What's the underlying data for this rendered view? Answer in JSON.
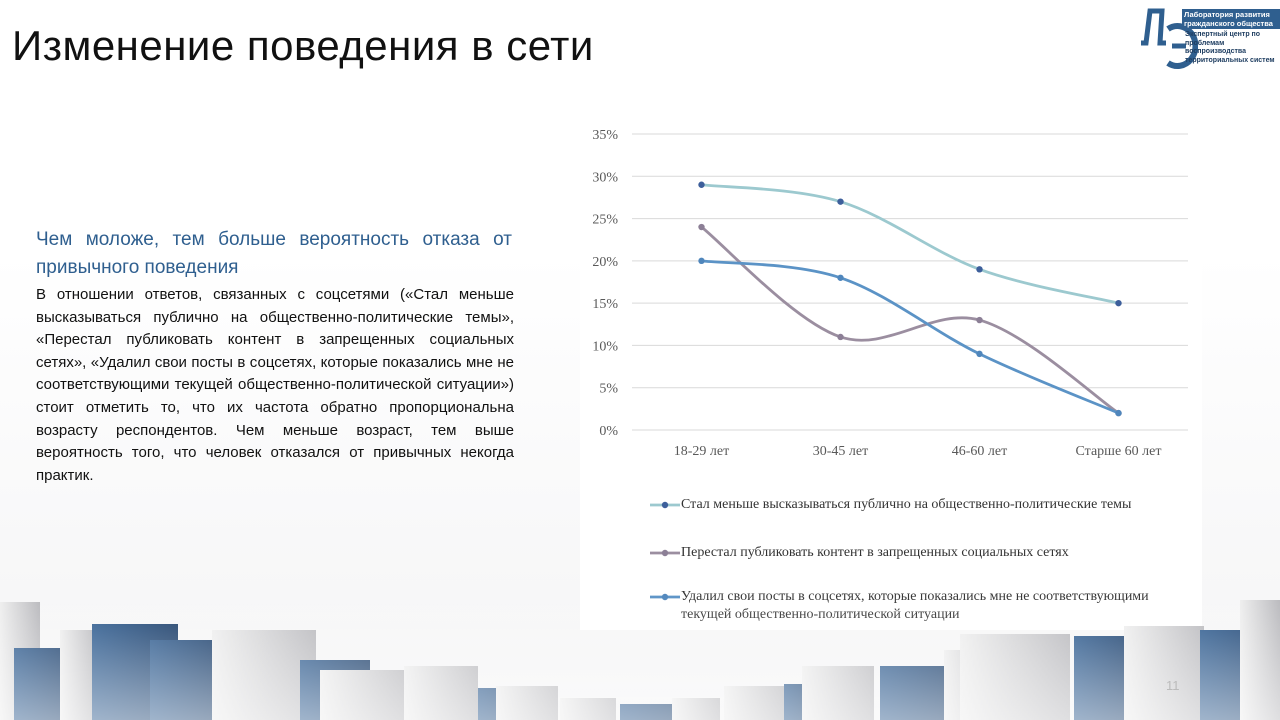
{
  "slide": {
    "title": "Изменение поведения в сети",
    "subtitle": "Чем моложе, тем больше вероятность отказа от привычного поведения",
    "body": "В отношении ответов, связанных с соцсетями («Стал меньше высказываться публично на общественно-политические темы», «Перестал публиковать контент в запрещенных социальных сетях», «Удалил свои посты в соцсетях, которые показались мне не соответствующими текущей общественно-политической ситуации») стоит отметить то, что их частота обратно пропорциональна возрасту респондентов. Чем меньше возраст, тем выше вероятность того, что человек отказался от привычных некогда практик.",
    "page_number": "11"
  },
  "logo": {
    "line1": "Лаборатория развития гражданского общества",
    "line2": "Экспертный центр по проблемам воспроизводства территориальных систем",
    "letters": "ЛЭ",
    "color": "#2f5f8f"
  },
  "chart_data": {
    "type": "line",
    "categories": [
      "18-29 лет",
      "30-45 лет",
      "46-60 лет",
      "Старше 60 лет"
    ],
    "y_ticks": [
      "0%",
      "5%",
      "10%",
      "15%",
      "20%",
      "25%",
      "30%",
      "35%"
    ],
    "ylim": [
      0,
      35
    ],
    "y_unit": "%",
    "grid": true,
    "legend_position": "bottom",
    "series": [
      {
        "name": "Стал меньше высказываться публично на общественно-политические темы",
        "values": [
          29,
          27,
          19,
          15
        ],
        "color": "#9cc9cf",
        "marker_color": "#3d5f9b"
      },
      {
        "name": "Перестал публиковать контент в запрещенных социальных сетях",
        "values": [
          24,
          11,
          13,
          2
        ],
        "color": "#9b8ea0",
        "marker_color": "#8c7f96"
      },
      {
        "name": "Удалил свои посты в соцсетях, которые показались мне не соответствующими текущей общественно-политической ситуации",
        "values": [
          20,
          18,
          9,
          2
        ],
        "color": "#5b93c6",
        "marker_color": "#4f86bc"
      }
    ]
  }
}
